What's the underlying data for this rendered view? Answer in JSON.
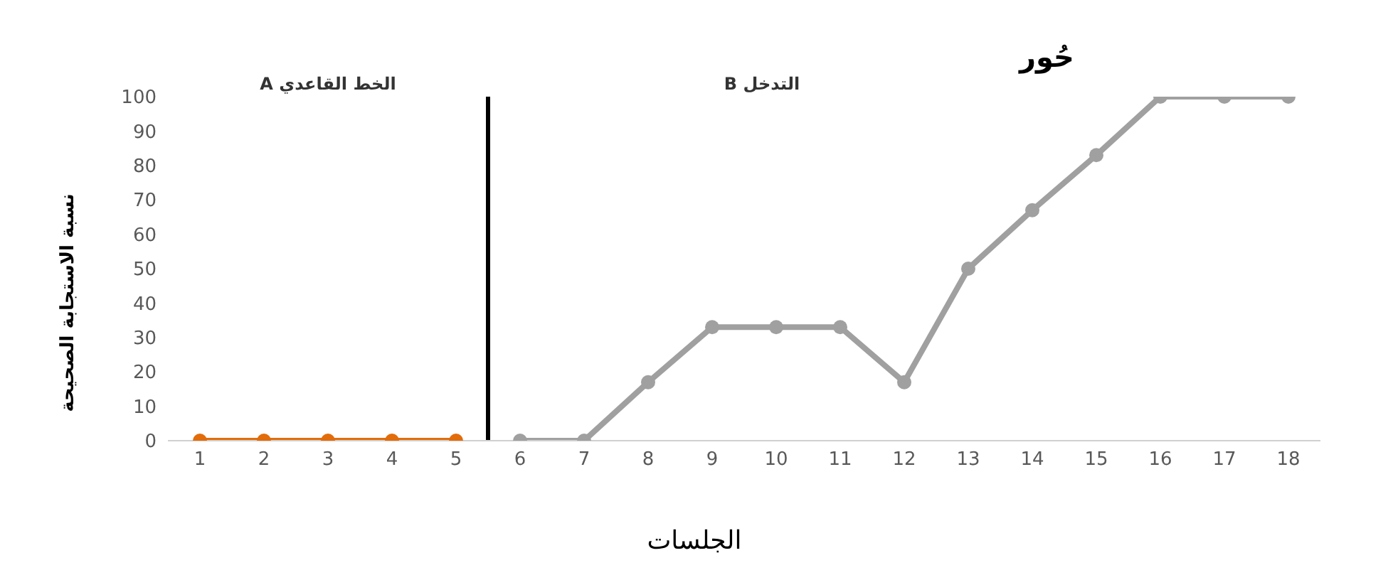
{
  "chart_data": {
    "type": "line",
    "title": "حُور",
    "xlabel": "الجلسات",
    "ylabel": "نسبة الاستجابة الصحيحة",
    "annotations": [
      "الخط القاعدي A",
      "التدخل B"
    ],
    "series": [
      {
        "color": "#e36c0a",
        "x": [
          1,
          2,
          3,
          4,
          5
        ],
        "values": [
          0,
          0,
          0,
          0,
          0
        ]
      },
      {
        "color": "#a0a0a0",
        "x": [
          6,
          7,
          8,
          9,
          10,
          11,
          12,
          13,
          14,
          15,
          16,
          17,
          18
        ],
        "values": [
          0,
          0,
          17,
          33,
          33,
          33,
          17,
          50,
          67,
          83,
          100,
          100,
          100
        ]
      }
    ],
    "xlim": [
      0.5,
      18.5
    ],
    "xticks": [
      1,
      2,
      3,
      4,
      5,
      6,
      7,
      8,
      9,
      10,
      11,
      12,
      13,
      14,
      15,
      16,
      17,
      18
    ],
    "ylim": [
      0,
      100
    ],
    "yticks": [
      0,
      10,
      20,
      30,
      40,
      50,
      60,
      70,
      80,
      90,
      100
    ],
    "ref_lines": [
      {
        "axis": "x",
        "value": 5.5,
        "color": "#000000"
      }
    ],
    "grid": false,
    "marker": "circle",
    "line_style": "solid"
  }
}
